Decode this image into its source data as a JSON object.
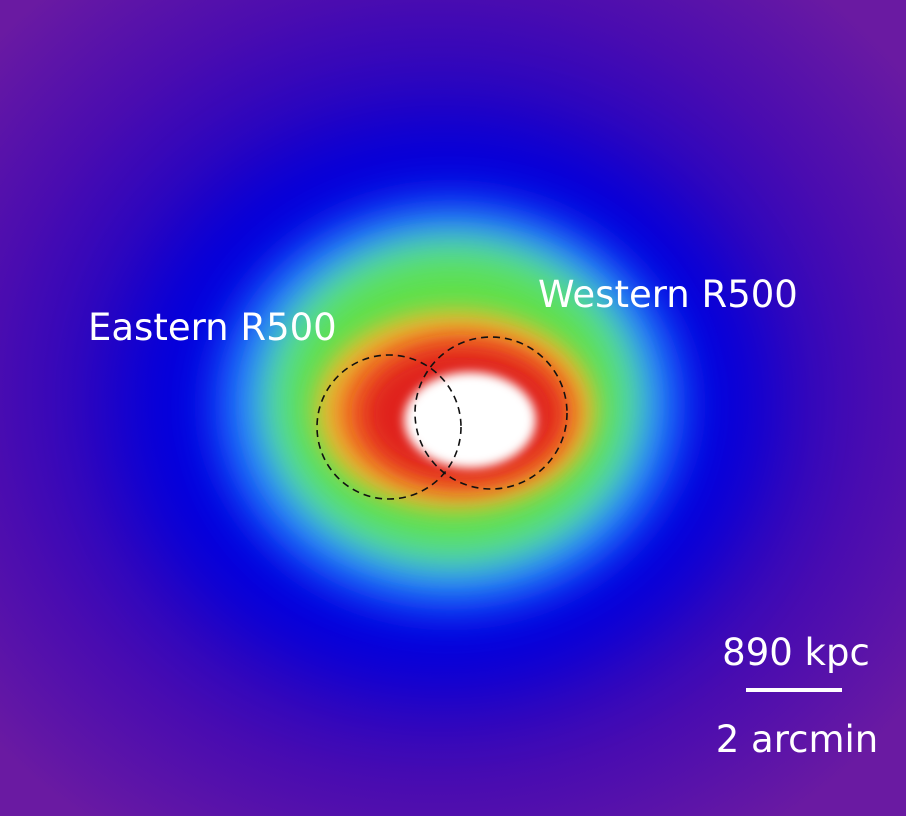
{
  "labels": {
    "eastern": "Eastern R500",
    "western": "Western R500"
  },
  "scale_bar": {
    "top": "890 kpc",
    "bottom": "2 arcmin"
  }
}
